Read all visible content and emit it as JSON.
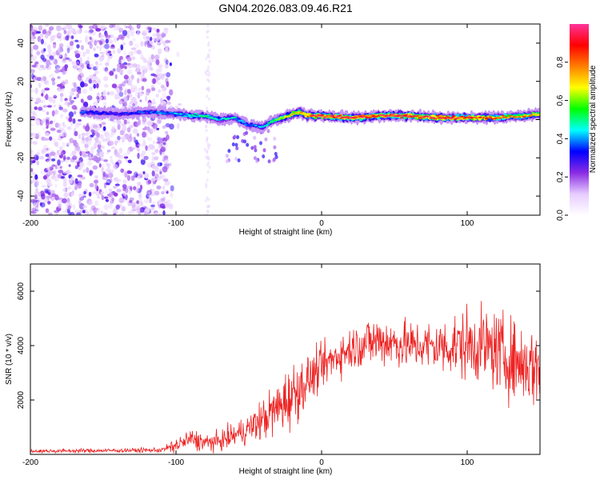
{
  "title": "GN04.2026.083.09.46.R21",
  "chart_data": [
    {
      "type": "heatmap",
      "name": "spectrogram",
      "xlabel": "Height of straight line (km)",
      "ylabel": "Frequency (Hz)",
      "xlim": [
        -200,
        150
      ],
      "ylim": [
        -50,
        50
      ],
      "xticks": [
        -200,
        -100,
        0,
        100
      ],
      "xtick_labels": [
        "-200",
        "-100",
        "0",
        "100"
      ],
      "yticks": [
        -40,
        -20,
        0,
        20,
        40
      ],
      "ytick_labels": [
        "-40",
        "-20",
        "0",
        "20",
        "40"
      ],
      "colorbar": {
        "label": "Normalized spectral amplitude",
        "range": [
          0,
          1
        ],
        "ticks": [
          0.0,
          0.2,
          0.4,
          0.6,
          0.8
        ],
        "tick_labels": [
          "0.0",
          "0.2",
          "0.4",
          "0.6",
          "0.8"
        ],
        "colormap": [
          "#ffffff",
          "#e6ccff",
          "#8a2be2",
          "#0000ff",
          "#00ffff",
          "#00ff00",
          "#ffff00",
          "#ff8000",
          "#ff0000",
          "#ff3399"
        ]
      },
      "ridge": {
        "description": "dominant frequency track",
        "x": [
          -165,
          -140,
          -120,
          -100,
          -90,
          -80,
          -70,
          -60,
          -50,
          -40,
          -35,
          -30,
          -20,
          -15,
          -10,
          0,
          20,
          40,
          60,
          80,
          100,
          120,
          140,
          150
        ],
        "y": [
          4,
          3,
          4,
          3,
          2,
          2,
          0,
          1,
          -3,
          -4,
          -1,
          0,
          3,
          4,
          2,
          2,
          1,
          2,
          2,
          1,
          1,
          1,
          2,
          3
        ],
        "amplitude": [
          0.35,
          0.3,
          0.35,
          0.4,
          0.45,
          0.5,
          0.45,
          0.45,
          0.35,
          0.4,
          0.5,
          0.55,
          0.7,
          0.75,
          0.8,
          0.9,
          0.9,
          0.9,
          0.9,
          0.9,
          0.85,
          0.8,
          0.75,
          0.65
        ]
      }
    },
    {
      "type": "line",
      "name": "snr",
      "xlabel": "Height of straight line (km)",
      "ylabel": "SNR (10 * v/v)",
      "xlim": [
        -200,
        150
      ],
      "ylim": [
        0,
        7000
      ],
      "xticks": [
        -200,
        -100,
        0,
        100
      ],
      "xtick_labels": [
        "-200",
        "-100",
        "0",
        "100"
      ],
      "yticks": [
        2000,
        4000,
        6000
      ],
      "ytick_labels": [
        "2000",
        "4000",
        "6000"
      ],
      "color": "#ee2222",
      "envelope": {
        "x": [
          -200,
          -150,
          -110,
          -100,
          -90,
          -80,
          -70,
          -60,
          -50,
          -40,
          -30,
          -20,
          -10,
          0,
          10,
          20,
          30,
          40,
          50,
          60,
          70,
          80,
          90,
          100,
          110,
          120,
          130,
          140,
          150
        ],
        "mean": [
          120,
          140,
          160,
          320,
          560,
          420,
          480,
          700,
          950,
          1300,
          1700,
          2200,
          2700,
          3200,
          3600,
          3900,
          4100,
          4200,
          4100,
          4000,
          4000,
          3950,
          4000,
          4050,
          4000,
          3800,
          3500,
          3300,
          3200
        ],
        "spread": [
          60,
          70,
          80,
          250,
          350,
          300,
          300,
          400,
          500,
          700,
          900,
          1100,
          800,
          700,
          700,
          700,
          800,
          900,
          800,
          800,
          800,
          900,
          1000,
          1200,
          1200,
          1300,
          1300,
          1300,
          1400
        ]
      }
    }
  ]
}
